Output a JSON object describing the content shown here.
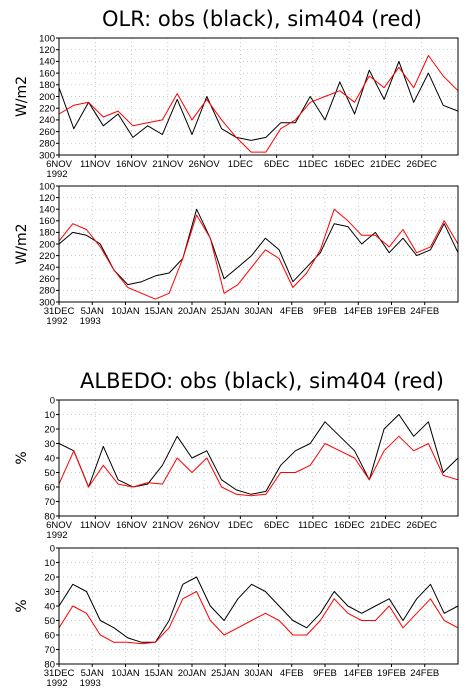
{
  "titles": {
    "olr": "OLR: obs (black), sim404 (red)",
    "albedo": "ALBEDO: obs (black), sim404 (red)"
  },
  "colors": {
    "obs": "#000000",
    "sim": "#ff0000",
    "grid": "#b8b8b8"
  },
  "chart_data": [
    {
      "type": "line",
      "ylabel": "W/m2",
      "yticks": [
        "100",
        "120",
        "140",
        "160",
        "180",
        "200",
        "220",
        "240",
        "260",
        "280",
        "300"
      ],
      "ylim": [
        300,
        100
      ],
      "y_inverted": true,
      "xticks": [
        {
          "label": "6NOV",
          "year": "1992"
        },
        {
          "label": "11NOV"
        },
        {
          "label": "16NOV"
        },
        {
          "label": "21NOV"
        },
        {
          "label": "26NOV"
        },
        {
          "label": "1DEC"
        },
        {
          "label": "6DEC"
        },
        {
          "label": "11DEC"
        },
        {
          "label": "16DEC"
        },
        {
          "label": "21DEC"
        },
        {
          "label": "26DEC"
        }
      ],
      "x": [
        "6NOV1992",
        "8NOV1992",
        "10NOV1992",
        "12NOV1992",
        "14NOV1992",
        "16NOV1992",
        "18NOV1992",
        "20NOV1992",
        "22NOV1992",
        "24NOV1992",
        "26NOV1992",
        "28NOV1992",
        "30NOV1992",
        "2DEC1992",
        "4DEC1992",
        "6DEC1992",
        "8DEC1992",
        "10DEC1992",
        "12DEC1992",
        "14DEC1992",
        "16DEC1992",
        "18DEC1992",
        "20DEC1992",
        "22DEC1992",
        "24DEC1992",
        "26DEC1992",
        "28DEC1992",
        "30DEC1992"
      ],
      "series": [
        {
          "name": "obs",
          "color": "#000000",
          "values": [
            185,
            255,
            210,
            250,
            230,
            270,
            250,
            265,
            205,
            265,
            200,
            255,
            270,
            275,
            270,
            245,
            245,
            200,
            240,
            175,
            230,
            155,
            205,
            140,
            210,
            160,
            215,
            225
          ]
        },
        {
          "name": "sim404",
          "color": "#ff0000",
          "values": [
            230,
            215,
            210,
            235,
            225,
            250,
            245,
            240,
            195,
            240,
            205,
            240,
            270,
            295,
            295,
            255,
            240,
            210,
            200,
            190,
            210,
            165,
            185,
            150,
            185,
            130,
            165,
            190
          ]
        }
      ]
    },
    {
      "type": "line",
      "ylabel": "W/m2",
      "yticks": [
        "100",
        "120",
        "140",
        "160",
        "180",
        "200",
        "220",
        "240",
        "260",
        "280",
        "300"
      ],
      "ylim": [
        300,
        100
      ],
      "y_inverted": true,
      "xticks": [
        {
          "label": "31DEC",
          "year": "1992"
        },
        {
          "label": "5JAN",
          "year": "1993"
        },
        {
          "label": "10JAN"
        },
        {
          "label": "15JAN"
        },
        {
          "label": "20JAN"
        },
        {
          "label": "25JAN"
        },
        {
          "label": "30JAN"
        },
        {
          "label": "4FEB"
        },
        {
          "label": "9FEB"
        },
        {
          "label": "14FEB"
        },
        {
          "label": "19FEB"
        },
        {
          "label": "24FEB"
        }
      ],
      "x": [
        "31DEC1992",
        "2JAN1993",
        "4JAN1993",
        "6JAN1993",
        "8JAN1993",
        "10JAN1993",
        "12JAN1993",
        "14JAN1993",
        "16JAN1993",
        "18JAN1993",
        "20JAN1993",
        "22JAN1993",
        "24JAN1993",
        "26JAN1993",
        "28JAN1993",
        "30JAN1993",
        "1FEB1993",
        "3FEB1993",
        "5FEB1993",
        "7FEB1993",
        "9FEB1993",
        "11FEB1993",
        "13FEB1993",
        "15FEB1993",
        "17FEB1993",
        "19FEB1993",
        "21FEB1993",
        "23FEB1993",
        "25FEB1993",
        "27FEB1993"
      ],
      "series": [
        {
          "name": "obs",
          "color": "#000000",
          "values": [
            200,
            180,
            185,
            200,
            245,
            270,
            265,
            255,
            250,
            225,
            140,
            190,
            260,
            240,
            220,
            190,
            210,
            265,
            240,
            215,
            165,
            170,
            200,
            180,
            215,
            190,
            220,
            210,
            165,
            215
          ]
        },
        {
          "name": "sim404",
          "color": "#ff0000",
          "values": [
            195,
            165,
            175,
            205,
            245,
            275,
            285,
            295,
            285,
            225,
            150,
            190,
            285,
            270,
            240,
            210,
            225,
            275,
            250,
            210,
            140,
            160,
            185,
            185,
            205,
            175,
            215,
            205,
            160,
            200
          ]
        }
      ]
    },
    {
      "type": "line",
      "ylabel": "%",
      "yticks": [
        "0",
        "10",
        "20",
        "30",
        "40",
        "50",
        "60",
        "70",
        "80"
      ],
      "ylim": [
        0,
        80
      ],
      "xticks": [
        {
          "label": "6NOV",
          "year": "1992"
        },
        {
          "label": "11NOV"
        },
        {
          "label": "16NOV"
        },
        {
          "label": "21NOV"
        },
        {
          "label": "26NOV"
        },
        {
          "label": "1DEC"
        },
        {
          "label": "6DEC"
        },
        {
          "label": "11DEC"
        },
        {
          "label": "16DEC"
        },
        {
          "label": "21DEC"
        },
        {
          "label": "26DEC"
        }
      ],
      "x": [
        "6NOV1992",
        "8NOV1992",
        "10NOV1992",
        "12NOV1992",
        "14NOV1992",
        "16NOV1992",
        "18NOV1992",
        "20NOV1992",
        "22NOV1992",
        "24NOV1992",
        "26NOV1992",
        "28NOV1992",
        "30NOV1992",
        "2DEC1992",
        "4DEC1992",
        "6DEC1992",
        "8DEC1992",
        "10DEC1992",
        "12DEC1992",
        "14DEC1992",
        "16DEC1992",
        "18DEC1992",
        "20DEC1992",
        "22DEC1992",
        "24DEC1992",
        "26DEC1992",
        "28DEC1992",
        "30DEC1992"
      ],
      "series": [
        {
          "name": "obs",
          "color": "#000000",
          "values": [
            50,
            45,
            20,
            48,
            25,
            20,
            22,
            35,
            55,
            40,
            45,
            25,
            18,
            15,
            17,
            35,
            45,
            50,
            65,
            55,
            45,
            25,
            60,
            70,
            55,
            65,
            30,
            40
          ]
        },
        {
          "name": "sim404",
          "color": "#ff0000",
          "values": [
            22,
            45,
            20,
            35,
            22,
            20,
            23,
            22,
            40,
            30,
            40,
            20,
            15,
            14,
            15,
            30,
            30,
            35,
            50,
            45,
            40,
            25,
            45,
            55,
            45,
            50,
            28,
            25
          ]
        }
      ]
    },
    {
      "type": "line",
      "ylabel": "%",
      "yticks": [
        "0",
        "10",
        "20",
        "30",
        "40",
        "50",
        "60",
        "70",
        "80"
      ],
      "ylim": [
        0,
        80
      ],
      "xticks": [
        {
          "label": "31DEC",
          "year": "1992"
        },
        {
          "label": "5JAN",
          "year": "1993"
        },
        {
          "label": "10JAN"
        },
        {
          "label": "15JAN"
        },
        {
          "label": "20JAN"
        },
        {
          "label": "25JAN"
        },
        {
          "label": "30JAN"
        },
        {
          "label": "4FEB"
        },
        {
          "label": "9FEB"
        },
        {
          "label": "14FEB"
        },
        {
          "label": "19FEB"
        },
        {
          "label": "24FEB"
        }
      ],
      "x": [
        "31DEC1992",
        "2JAN1993",
        "4JAN1993",
        "6JAN1993",
        "8JAN1993",
        "10JAN1993",
        "12JAN1993",
        "14JAN1993",
        "16JAN1993",
        "18JAN1993",
        "20JAN1993",
        "22JAN1993",
        "24JAN1993",
        "26JAN1993",
        "28JAN1993",
        "30JAN1993",
        "1FEB1993",
        "3FEB1993",
        "5FEB1993",
        "7FEB1993",
        "9FEB1993",
        "11FEB1993",
        "13FEB1993",
        "15FEB1993",
        "17FEB1993",
        "19FEB1993",
        "21FEB1993",
        "23FEB1993",
        "25FEB1993",
        "27FEB1993"
      ],
      "series": [
        {
          "name": "obs",
          "color": "#000000",
          "values": [
            40,
            55,
            50,
            30,
            25,
            18,
            15,
            15,
            30,
            55,
            60,
            40,
            30,
            45,
            55,
            50,
            40,
            30,
            25,
            35,
            50,
            40,
            35,
            40,
            45,
            30,
            45,
            55,
            35,
            40
          ]
        },
        {
          "name": "sim404",
          "color": "#ff0000",
          "values": [
            25,
            40,
            35,
            20,
            15,
            15,
            14,
            15,
            25,
            45,
            50,
            30,
            20,
            25,
            30,
            35,
            30,
            20,
            20,
            30,
            45,
            35,
            30,
            30,
            40,
            25,
            35,
            45,
            30,
            25
          ]
        }
      ]
    }
  ]
}
